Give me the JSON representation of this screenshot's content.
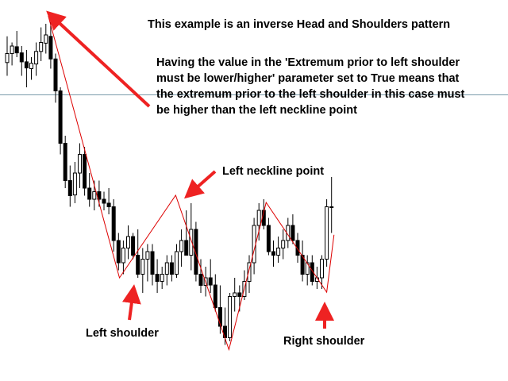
{
  "chart_data": {
    "type": "candlestick",
    "description_lines": [
      "This example is an inverse Head and Shoulders pattern",
      "Having the value in the 'Extremum prior to left shoulder",
      "must be lower/higher' parameter set to True means that",
      "the extremum prior to the left shoulder in this case must",
      "be higher than the left neckline point"
    ],
    "annotations": {
      "left_neckline_point": "Left neckline point",
      "left_shoulder": "Left shoulder",
      "right_shoulder": "Right shoulder"
    },
    "colors": {
      "pattern_line": "#dd0000",
      "arrow": "#ee2222",
      "candle_up_fill": "#ffffff",
      "candle_down_fill": "#000000",
      "candle_outline": "#000000",
      "horizontal_level": "#7a9aaa"
    },
    "y_range": [
      0,
      100
    ],
    "horizontal_level": 76,
    "candles": [
      {
        "o": 85.0,
        "h": 92.3,
        "l": 81.3,
        "c": 87.5
      },
      {
        "o": 87.5,
        "h": 90.6,
        "l": 84.2,
        "c": 89.6
      },
      {
        "o": 89.4,
        "h": 93.8,
        "l": 86.5,
        "c": 87.7
      },
      {
        "o": 87.7,
        "h": 89.6,
        "l": 81.3,
        "c": 85.2
      },
      {
        "o": 85.2,
        "h": 88.5,
        "l": 78.1,
        "c": 83.5
      },
      {
        "o": 83.3,
        "h": 86.5,
        "l": 80.2,
        "c": 84.8
      },
      {
        "o": 84.6,
        "h": 90.6,
        "l": 81.3,
        "c": 88.1
      },
      {
        "o": 88.1,
        "h": 94.8,
        "l": 85.4,
        "c": 90.6
      },
      {
        "o": 90.4,
        "h": 95.8,
        "l": 87.5,
        "c": 92.7
      },
      {
        "o": 92.3,
        "h": 97.9,
        "l": 83.3,
        "c": 86.0
      },
      {
        "o": 86.0,
        "h": 87.5,
        "l": 73.8,
        "c": 77.1
      },
      {
        "o": 77.1,
        "h": 78.1,
        "l": 59.4,
        "c": 62.5
      },
      {
        "o": 62.5,
        "h": 64.6,
        "l": 50.0,
        "c": 52.1
      },
      {
        "o": 52.1,
        "h": 56.3,
        "l": 44.8,
        "c": 47.9
      },
      {
        "o": 48.1,
        "h": 57.3,
        "l": 45.8,
        "c": 54.2
      },
      {
        "o": 54.2,
        "h": 62.5,
        "l": 50.0,
        "c": 59.4
      },
      {
        "o": 59.4,
        "h": 61.5,
        "l": 47.9,
        "c": 50.0
      },
      {
        "o": 50.0,
        "h": 54.2,
        "l": 44.8,
        "c": 46.9
      },
      {
        "o": 46.9,
        "h": 52.1,
        "l": 43.8,
        "c": 49.0
      },
      {
        "o": 49.0,
        "h": 52.1,
        "l": 44.8,
        "c": 46.9
      },
      {
        "o": 46.9,
        "h": 49.0,
        "l": 43.8,
        "c": 45.8
      },
      {
        "o": 45.8,
        "h": 50.0,
        "l": 42.7,
        "c": 44.8
      },
      {
        "o": 44.8,
        "h": 46.9,
        "l": 32.3,
        "c": 35.4
      },
      {
        "o": 35.4,
        "h": 37.5,
        "l": 27.1,
        "c": 29.2
      },
      {
        "o": 29.2,
        "h": 35.4,
        "l": 26.0,
        "c": 33.3
      },
      {
        "o": 33.3,
        "h": 39.6,
        "l": 30.2,
        "c": 36.5
      },
      {
        "o": 36.5,
        "h": 37.5,
        "l": 30.2,
        "c": 31.3
      },
      {
        "o": 31.3,
        "h": 38.5,
        "l": 25.0,
        "c": 26.0
      },
      {
        "o": 26.0,
        "h": 33.3,
        "l": 20.8,
        "c": 30.2
      },
      {
        "o": 30.2,
        "h": 34.4,
        "l": 24.0,
        "c": 32.3
      },
      {
        "o": 32.3,
        "h": 34.4,
        "l": 22.9,
        "c": 26.0
      },
      {
        "o": 26.0,
        "h": 30.2,
        "l": 20.8,
        "c": 24.0
      },
      {
        "o": 24.0,
        "h": 28.1,
        "l": 21.9,
        "c": 26.0
      },
      {
        "o": 26.0,
        "h": 31.3,
        "l": 22.9,
        "c": 29.2
      },
      {
        "o": 29.2,
        "h": 31.3,
        "l": 24.0,
        "c": 26.0
      },
      {
        "o": 26.0,
        "h": 34.4,
        "l": 25.0,
        "c": 32.3
      },
      {
        "o": 32.3,
        "h": 38.5,
        "l": 28.1,
        "c": 35.4
      },
      {
        "o": 35.4,
        "h": 43.8,
        "l": 31.3,
        "c": 31.3
      },
      {
        "o": 31.3,
        "h": 45.8,
        "l": 27.1,
        "c": 38.5
      },
      {
        "o": 38.5,
        "h": 40.6,
        "l": 24.0,
        "c": 26.0
      },
      {
        "o": 26.0,
        "h": 30.2,
        "l": 20.8,
        "c": 22.9
      },
      {
        "o": 22.9,
        "h": 28.1,
        "l": 19.8,
        "c": 25.0
      },
      {
        "o": 25.0,
        "h": 30.2,
        "l": 20.8,
        "c": 23.0
      },
      {
        "o": 23.0,
        "h": 26.0,
        "l": 15.6,
        "c": 16.7
      },
      {
        "o": 16.7,
        "h": 22.9,
        "l": 9.4,
        "c": 11.5
      },
      {
        "o": 11.5,
        "h": 16.7,
        "l": 6.3,
        "c": 8.3
      },
      {
        "o": 8.3,
        "h": 20.8,
        "l": 7.3,
        "c": 19.8
      },
      {
        "o": 19.8,
        "h": 25.0,
        "l": 15.6,
        "c": 20.8
      },
      {
        "o": 20.8,
        "h": 22.9,
        "l": 15.6,
        "c": 19.8
      },
      {
        "o": 19.8,
        "h": 27.1,
        "l": 18.8,
        "c": 24.0
      },
      {
        "o": 24.0,
        "h": 31.3,
        "l": 20.8,
        "c": 29.2
      },
      {
        "o": 29.2,
        "h": 41.7,
        "l": 26.0,
        "c": 39.6
      },
      {
        "o": 39.6,
        "h": 45.8,
        "l": 35.4,
        "c": 43.8
      },
      {
        "o": 43.8,
        "h": 46.9,
        "l": 38.5,
        "c": 39.6
      },
      {
        "o": 39.6,
        "h": 41.7,
        "l": 31.3,
        "c": 32.3
      },
      {
        "o": 32.3,
        "h": 35.4,
        "l": 28.1,
        "c": 31.3
      },
      {
        "o": 31.3,
        "h": 36.5,
        "l": 29.2,
        "c": 33.3
      },
      {
        "o": 33.3,
        "h": 38.5,
        "l": 30.2,
        "c": 35.4
      },
      {
        "o": 35.4,
        "h": 41.7,
        "l": 33.3,
        "c": 39.6
      },
      {
        "o": 39.6,
        "h": 42.7,
        "l": 34.4,
        "c": 35.4
      },
      {
        "o": 35.4,
        "h": 37.5,
        "l": 29.2,
        "c": 31.3
      },
      {
        "o": 31.3,
        "h": 35.4,
        "l": 24.0,
        "c": 26.0
      },
      {
        "o": 26.0,
        "h": 31.3,
        "l": 22.9,
        "c": 29.2
      },
      {
        "o": 29.2,
        "h": 31.3,
        "l": 22.9,
        "c": 24.0
      },
      {
        "o": 24.0,
        "h": 28.1,
        "l": 21.9,
        "c": 25.0
      },
      {
        "o": 25.0,
        "h": 31.3,
        "l": 21.9,
        "c": 30.2
      },
      {
        "o": 30.2,
        "h": 46.9,
        "l": 28.1,
        "c": 44.8
      },
      {
        "o": 44.8,
        "h": 53.1,
        "l": 37.5,
        "c": 44.8
      }
    ],
    "pattern_line": [
      {
        "x": 8.5,
        "y": 98.0
      },
      {
        "x": 23.2,
        "y": 25.0
      },
      {
        "x": 34.8,
        "y": 48.0
      },
      {
        "x": 45.8,
        "y": 5.0
      },
      {
        "x": 53.5,
        "y": 46.0
      },
      {
        "x": 66.0,
        "y": 21.0
      },
      {
        "x": 67.5,
        "y": 37.0
      }
    ]
  }
}
